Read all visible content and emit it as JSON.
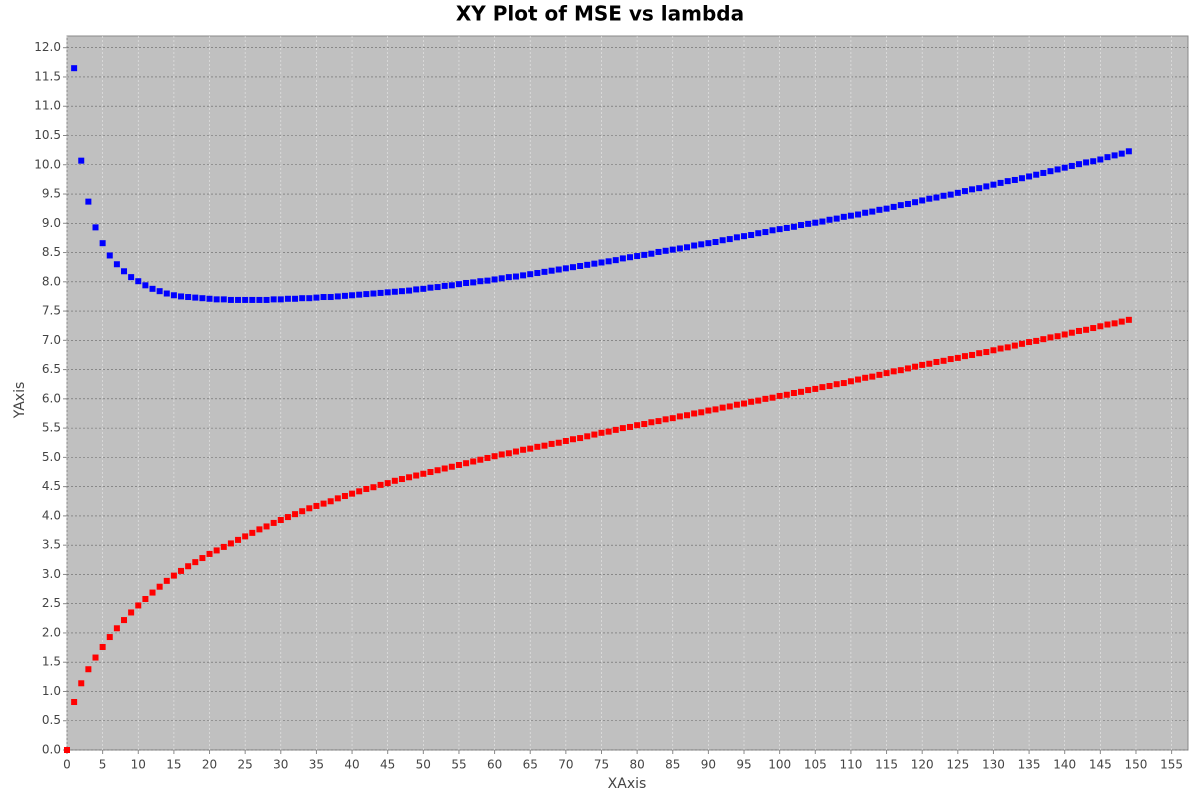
{
  "chart_data": {
    "type": "scatter",
    "title": "XY Plot of MSE vs lambda",
    "x_label": "XAxis",
    "y_label": "YAxis",
    "x": [
      0,
      1,
      2,
      3,
      4,
      5,
      6,
      7,
      8,
      9,
      10,
      11,
      12,
      13,
      14,
      15,
      16,
      17,
      18,
      19,
      20,
      21,
      22,
      23,
      24,
      25,
      26,
      27,
      28,
      29,
      30,
      31,
      32,
      33,
      34,
      35,
      36,
      37,
      38,
      39,
      40,
      41,
      42,
      43,
      44,
      45,
      46,
      47,
      48,
      49,
      50,
      51,
      52,
      53,
      54,
      55,
      56,
      57,
      58,
      59,
      60,
      61,
      62,
      63,
      64,
      65,
      66,
      67,
      68,
      69,
      70,
      71,
      72,
      73,
      74,
      75,
      76,
      77,
      78,
      79,
      80,
      81,
      82,
      83,
      84,
      85,
      86,
      87,
      88,
      89,
      90,
      91,
      92,
      93,
      94,
      95,
      96,
      97,
      98,
      99,
      100,
      101,
      102,
      103,
      104,
      105,
      106,
      107,
      108,
      109,
      110,
      111,
      112,
      113,
      114,
      115,
      116,
      117,
      118,
      119,
      120,
      121,
      122,
      123,
      124,
      125,
      126,
      127,
      128,
      129,
      130,
      131,
      132,
      133,
      134,
      135,
      136,
      137,
      138,
      139,
      140,
      141,
      142,
      143,
      144,
      145,
      146,
      147,
      148,
      149
    ],
    "series": [
      {
        "color": "#ff0000",
        "values": [
          0,
          0.82,
          1.14,
          1.38,
          1.58,
          1.76,
          1.93,
          2.08,
          2.22,
          2.35,
          2.47,
          2.58,
          2.69,
          2.79,
          2.89,
          2.98,
          3.06,
          3.14,
          3.21,
          3.28,
          3.35,
          3.41,
          3.47,
          3.53,
          3.59,
          3.65,
          3.71,
          3.77,
          3.82,
          3.88,
          3.93,
          3.98,
          4.03,
          4.08,
          4.13,
          4.17,
          4.21,
          4.25,
          4.3,
          4.34,
          4.38,
          4.42,
          4.46,
          4.49,
          4.53,
          4.56,
          4.6,
          4.63,
          4.66,
          4.69,
          4.72,
          4.75,
          4.78,
          4.81,
          4.84,
          4.87,
          4.9,
          4.93,
          4.96,
          4.99,
          5.02,
          5.05,
          5.07,
          5.1,
          5.13,
          5.15,
          5.18,
          5.2,
          5.23,
          5.25,
          5.28,
          5.31,
          5.33,
          5.36,
          5.39,
          5.42,
          5.44,
          5.47,
          5.5,
          5.52,
          5.55,
          5.57,
          5.6,
          5.62,
          5.65,
          5.67,
          5.7,
          5.72,
          5.75,
          5.77,
          5.8,
          5.82,
          5.85,
          5.87,
          5.9,
          5.92,
          5.95,
          5.97,
          6.0,
          6.02,
          6.05,
          6.07,
          6.1,
          6.12,
          6.15,
          6.17,
          6.2,
          6.22,
          6.25,
          6.27,
          6.3,
          6.33,
          6.36,
          6.38,
          6.41,
          6.44,
          6.47,
          6.49,
          6.52,
          6.55,
          6.58,
          6.6,
          6.63,
          6.65,
          6.68,
          6.7,
          6.73,
          6.75,
          6.78,
          6.8,
          6.83,
          6.86,
          6.88,
          6.91,
          6.94,
          6.97,
          6.99,
          7.02,
          7.05,
          7.07,
          7.1,
          7.13,
          7.16,
          7.18,
          7.21,
          7.24,
          7.27,
          7.29,
          7.32,
          7.35
        ]
      },
      {
        "color": "#0000ff",
        "values": [
          null,
          11.65,
          10.07,
          9.37,
          8.93,
          8.66,
          8.45,
          8.3,
          8.18,
          8.08,
          8.01,
          7.94,
          7.88,
          7.84,
          7.8,
          7.77,
          7.75,
          7.74,
          7.73,
          7.72,
          7.71,
          7.7,
          7.7,
          7.69,
          7.69,
          7.69,
          7.69,
          7.69,
          7.69,
          7.7,
          7.7,
          7.71,
          7.71,
          7.72,
          7.72,
          7.73,
          7.74,
          7.74,
          7.75,
          7.76,
          7.77,
          7.78,
          7.79,
          7.8,
          7.81,
          7.82,
          7.83,
          7.84,
          7.85,
          7.87,
          7.88,
          7.9,
          7.91,
          7.93,
          7.94,
          7.96,
          7.98,
          7.99,
          8.01,
          8.02,
          8.04,
          8.06,
          8.08,
          8.09,
          8.11,
          8.13,
          8.15,
          8.17,
          8.19,
          8.21,
          8.23,
          8.25,
          8.27,
          8.29,
          8.31,
          8.33,
          8.35,
          8.37,
          8.4,
          8.42,
          8.44,
          8.46,
          8.48,
          8.51,
          8.53,
          8.55,
          8.57,
          8.59,
          8.62,
          8.64,
          8.66,
          8.68,
          8.71,
          8.73,
          8.76,
          8.78,
          8.8,
          8.83,
          8.85,
          8.88,
          8.9,
          8.92,
          8.94,
          8.97,
          8.99,
          9.01,
          9.03,
          9.06,
          9.08,
          9.11,
          9.13,
          9.15,
          9.18,
          9.2,
          9.23,
          9.25,
          9.28,
          9.31,
          9.33,
          9.36,
          9.39,
          9.42,
          9.44,
          9.47,
          9.49,
          9.52,
          9.55,
          9.58,
          9.6,
          9.63,
          9.66,
          9.69,
          9.72,
          9.74,
          9.77,
          9.8,
          9.83,
          9.86,
          9.89,
          9.92,
          9.95,
          9.98,
          10.01,
          10.04,
          10.06,
          10.09,
          10.13,
          10.16,
          10.19,
          10.23
        ]
      }
    ],
    "xlim": [
      0,
      157.3
    ],
    "xticks": [
      0,
      5,
      10,
      15,
      20,
      25,
      30,
      35,
      40,
      45,
      50,
      55,
      60,
      65,
      70,
      75,
      80,
      85,
      90,
      95,
      100,
      105,
      110,
      115,
      120,
      125,
      130,
      135,
      140,
      145,
      150,
      155
    ],
    "ylim": [
      0,
      12.2
    ],
    "yticks": [
      {
        "value": 0,
        "label": "0.0"
      },
      0.5,
      {
        "value": 1,
        "label": "1.0"
      },
      1.5,
      {
        "value": 2,
        "label": "2.0"
      },
      2.5,
      {
        "value": 3,
        "label": "3.0"
      },
      3.5,
      {
        "value": 4,
        "label": "4.0"
      },
      4.5,
      {
        "value": 5,
        "label": "5.0"
      },
      5.5,
      {
        "value": 6,
        "label": "6.0"
      },
      6.5,
      {
        "value": 7,
        "label": "7.0"
      },
      7.5,
      {
        "value": 8,
        "label": "8.0"
      },
      8.5,
      {
        "value": 9,
        "label": "9.0"
      },
      9.5,
      {
        "value": 10,
        "label": "10.0"
      },
      10.5,
      {
        "value": 11,
        "label": "11.0"
      },
      11.5,
      {
        "value": 12,
        "label": "12.0"
      }
    ],
    "grid": true
  }
}
